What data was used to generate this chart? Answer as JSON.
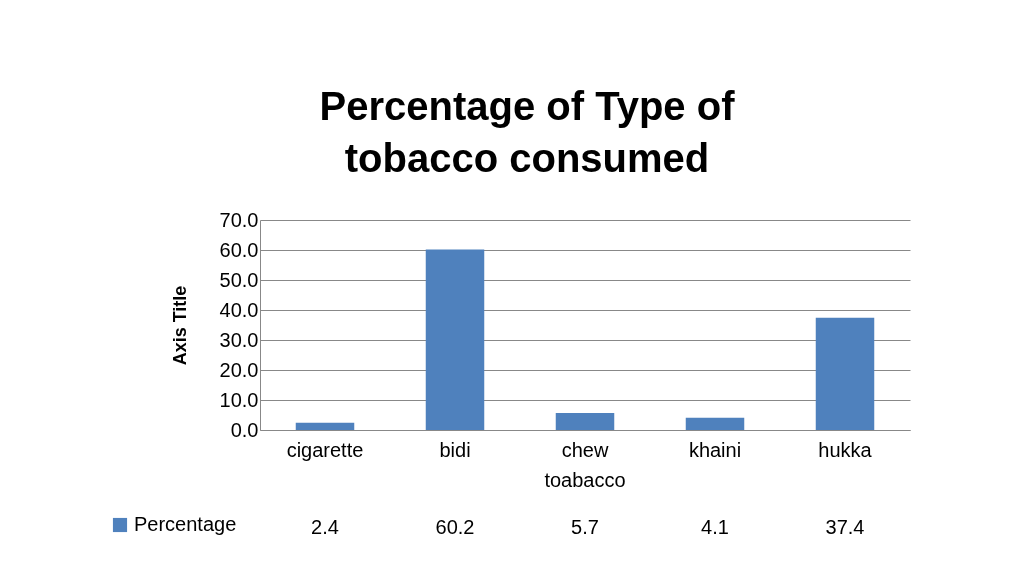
{
  "chart_data": {
    "type": "bar",
    "title": "Percentage of Type of tobacco consumed",
    "ylabel": "Axis Title",
    "categories": [
      "cigarette",
      "bidi",
      "chew toabacco",
      "khaini",
      "hukka"
    ],
    "series": [
      {
        "name": "Percentage",
        "color": "#4f81bd",
        "values": [
          2.4,
          60.2,
          5.7,
          4.1,
          37.4
        ]
      }
    ],
    "ylim": [
      0,
      70
    ],
    "yticks": [
      {
        "value": 0,
        "label": "0.0"
      },
      {
        "value": 10,
        "label": "10.0"
      },
      {
        "value": 20,
        "label": "20.0"
      },
      {
        "value": 30,
        "label": "30.0"
      },
      {
        "value": 40,
        "label": "40.0"
      },
      {
        "value": 50,
        "label": "50.0"
      },
      {
        "value": 60,
        "label": "60.0"
      },
      {
        "value": 70,
        "label": "70.0"
      }
    ],
    "grid": "y",
    "legend": "bottom",
    "data_labels": true
  }
}
